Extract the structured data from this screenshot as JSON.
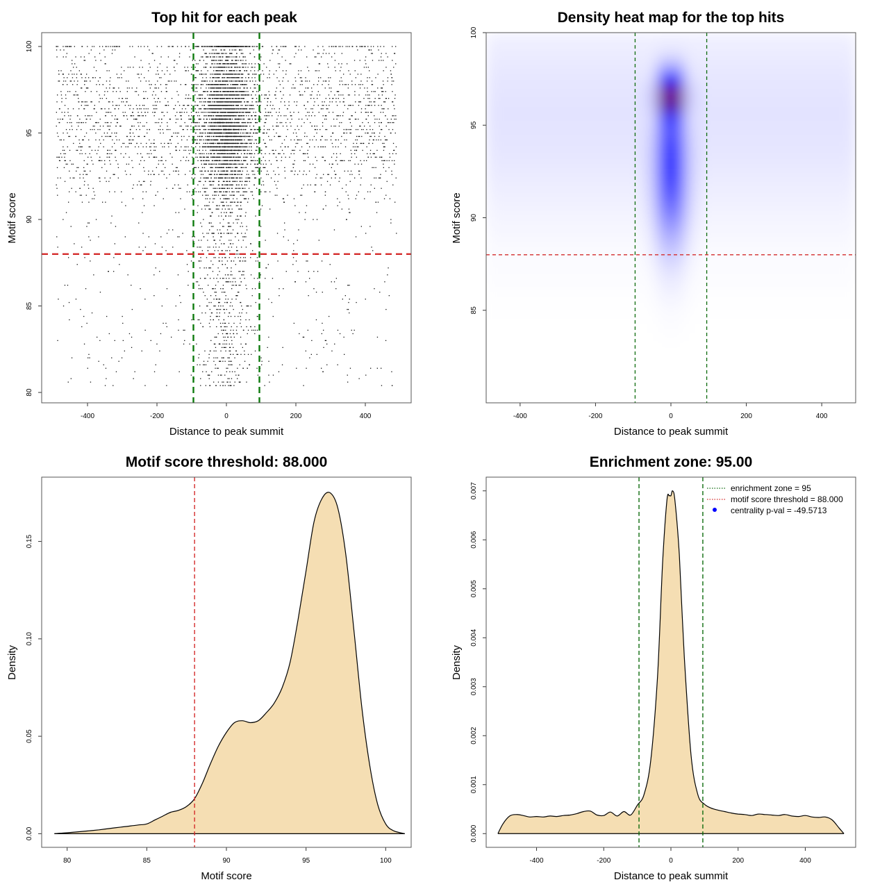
{
  "chart_data": [
    {
      "id": "top_hits",
      "type": "scatter",
      "title": "Top hit for each peak",
      "xlabel": "Distance to peak summit",
      "ylabel": "Motif score",
      "xlim": [
        -532,
        532
      ],
      "ylim": [
        79.4,
        100.8
      ],
      "x_ticks": [
        -400,
        -200,
        0,
        200,
        400
      ],
      "y_ticks": [
        80,
        85,
        90,
        95,
        100
      ],
      "y_ticks_rotated": true,
      "point_generation": {
        "n_central": 3600,
        "n_uniform": 2800,
        "central_x_sd": 38,
        "x_range": [
          -490,
          490
        ],
        "score_center": 95.6,
        "score_sd": 2.6,
        "score_range": [
          80.3,
          100
        ],
        "seed": 11
      },
      "hlines": [
        {
          "y": 88.0,
          "color": "#d42b2b",
          "style": "dashed"
        }
      ],
      "vlines": [
        {
          "x": -95,
          "color": "#0d7a0d",
          "style": "dashed"
        },
        {
          "x": 95,
          "color": "#0d7a0d",
          "style": "dashed"
        }
      ]
    },
    {
      "id": "heatmap",
      "type": "heatmap",
      "title": "Density heat map for the top hits",
      "xlabel": "Distance to peak summit",
      "ylabel": "Motif score",
      "xlim": [
        -490,
        490
      ],
      "ylim": [
        80,
        100
      ],
      "x_ticks": [
        -400,
        -200,
        0,
        200,
        400
      ],
      "y_ticks": [
        85,
        90,
        95,
        100
      ],
      "y_ticks_rotated": true,
      "hotspot": {
        "x": 0,
        "y": 96.5,
        "x_spread": 25,
        "y_spread": 1.0
      },
      "column": {
        "x": 0,
        "y": 93.0,
        "x_spread": 30,
        "y_spread": 3.0
      },
      "background": {
        "y": 95.5,
        "y_spread": 4.0
      },
      "colors": [
        "#ffffff",
        "#0000ff",
        "#ff0000"
      ],
      "hlines": [
        {
          "y": 88.0,
          "color": "#d42b2b",
          "style": "dashed"
        }
      ],
      "vlines": [
        {
          "x": -95,
          "color": "#0d6b0d",
          "style": "dashed"
        },
        {
          "x": 95,
          "color": "#0d6b0d",
          "style": "dashed"
        }
      ]
    },
    {
      "id": "score_density",
      "type": "area",
      "title": "Motif score threshold: 88.000",
      "xlabel": "Motif score",
      "ylabel": "Density",
      "xlim": [
        78.4,
        101.6
      ],
      "ylim": [
        -0.007,
        0.183
      ],
      "x_ticks": [
        80,
        85,
        90,
        95,
        100
      ],
      "y_ticks": [
        0.0,
        0.05,
        0.1,
        0.15
      ],
      "y_tick_labels": [
        "0.00",
        "0.05",
        "0.10",
        "0.15"
      ],
      "y_ticks_rotated": true,
      "x": [
        79.2,
        80,
        81,
        82,
        83,
        83.5,
        84,
        84.5,
        85,
        85.5,
        86,
        86.5,
        87,
        87.5,
        88,
        88.5,
        89,
        89.5,
        90,
        90.5,
        91,
        91.5,
        92,
        92.5,
        93,
        93.5,
        94,
        94.5,
        95,
        95.5,
        96,
        96.5,
        97,
        97.5,
        98,
        98.5,
        99,
        99.5,
        100,
        100.5,
        101.2
      ],
      "values": [
        0.0,
        0.0005,
        0.0012,
        0.002,
        0.003,
        0.0035,
        0.004,
        0.0045,
        0.005,
        0.007,
        0.009,
        0.011,
        0.012,
        0.014,
        0.018,
        0.026,
        0.036,
        0.045,
        0.052,
        0.057,
        0.058,
        0.057,
        0.058,
        0.062,
        0.067,
        0.075,
        0.088,
        0.11,
        0.135,
        0.16,
        0.172,
        0.175,
        0.167,
        0.143,
        0.105,
        0.065,
        0.035,
        0.015,
        0.005,
        0.0015,
        0.0
      ],
      "fill": "#f5deb3",
      "vlines": [
        {
          "x": 88.0,
          "color": "#d42b2b",
          "style": "dashed"
        }
      ]
    },
    {
      "id": "distance_density",
      "type": "area",
      "title": "Enrichment zone: 95.00",
      "xlabel": "Distance to peak summit",
      "ylabel": "Density",
      "xlim": [
        -550,
        550
      ],
      "ylim": [
        -0.00028,
        0.00728
      ],
      "x_ticks": [
        -400,
        -200,
        0,
        200,
        400
      ],
      "y_ticks": [
        0.0,
        0.001,
        0.002,
        0.003,
        0.004,
        0.005,
        0.006,
        0.007
      ],
      "y_tick_labels": [
        "0.000",
        "0.001",
        "0.002",
        "0.003",
        "0.004",
        "0.005",
        "0.006",
        "0.007"
      ],
      "y_ticks_rotated": true,
      "x": [
        -515,
        -500,
        -480,
        -460,
        -440,
        -420,
        -400,
        -380,
        -360,
        -340,
        -320,
        -300,
        -280,
        -260,
        -240,
        -220,
        -200,
        -180,
        -160,
        -140,
        -120,
        -100,
        -80,
        -60,
        -40,
        -25,
        -12,
        -5,
        0,
        5,
        12,
        25,
        40,
        60,
        80,
        100,
        120,
        140,
        160,
        180,
        200,
        220,
        240,
        260,
        280,
        300,
        320,
        340,
        360,
        380,
        400,
        420,
        440,
        460,
        480,
        500,
        515
      ],
      "values": [
        0.0,
        0.0002,
        0.00036,
        0.00039,
        0.00037,
        0.00034,
        0.00035,
        0.00034,
        0.00036,
        0.00035,
        0.00037,
        0.00038,
        0.00041,
        0.00045,
        0.00046,
        0.00038,
        0.00037,
        0.00044,
        0.00036,
        0.00045,
        0.00038,
        0.00058,
        0.0008,
        0.0015,
        0.0032,
        0.0055,
        0.0068,
        0.0069,
        0.0069,
        0.007,
        0.0068,
        0.0057,
        0.0036,
        0.0016,
        0.0008,
        0.0006,
        0.00052,
        0.00048,
        0.00045,
        0.00042,
        0.0004,
        0.00039,
        0.00037,
        0.0004,
        0.00039,
        0.00038,
        0.00037,
        0.00039,
        0.00036,
        0.00035,
        0.00037,
        0.00034,
        0.00033,
        0.00034,
        0.00028,
        0.00012,
        0.0
      ],
      "fill": "#f5deb3",
      "vlines": [
        {
          "x": -95,
          "color": "#0d6b0d",
          "style": "dashed"
        },
        {
          "x": 95,
          "color": "#0d6b0d",
          "style": "dashed"
        }
      ],
      "legend": {
        "placement": "top-right",
        "entries": [
          {
            "label": "enrichment zone = 95",
            "kind": "dotted-line",
            "color": "#0d6b0d"
          },
          {
            "label": "motif score threshold = 88.000",
            "kind": "dotted-line",
            "color": "#d42b2b"
          },
          {
            "label": "centrality p-val = -49.5713",
            "kind": "point",
            "color": "#0000ff"
          }
        ]
      }
    }
  ]
}
